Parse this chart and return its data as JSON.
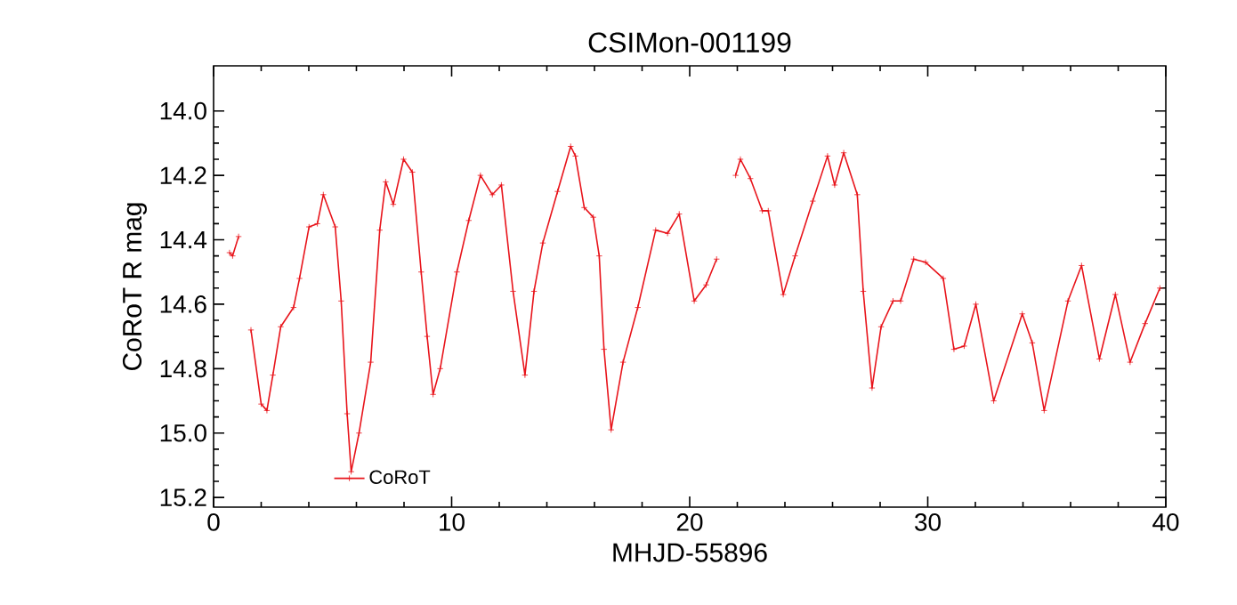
{
  "chart_data": {
    "type": "line",
    "title": "CSIMon-001199",
    "xlabel": "MHJD-55896",
    "ylabel": "CoRoT R mag",
    "x": [
      0.67,
      0.8,
      1.05,
      null,
      1.57,
      2.0,
      2.24,
      2.49,
      2.82,
      3.36,
      3.61,
      4.01,
      4.36,
      4.61,
      5.11,
      5.36,
      5.61,
      5.78,
      6.11,
      6.6,
      6.98,
      7.23,
      7.55,
      7.98,
      8.35,
      8.72,
      8.97,
      9.22,
      9.52,
      10.22,
      10.72,
      11.21,
      11.71,
      12.09,
      12.58,
      13.08,
      13.46,
      13.83,
      14.45,
      15.0,
      15.2,
      15.57,
      15.95,
      16.2,
      16.4,
      16.7,
      17.2,
      17.82,
      18.57,
      19.07,
      19.56,
      20.19,
      20.69,
      21.13,
      null,
      21.93,
      22.13,
      22.55,
      23.05,
      23.3,
      23.93,
      24.43,
      25.17,
      25.79,
      26.09,
      26.47,
      27.04,
      27.29,
      27.66,
      28.04,
      28.54,
      28.86,
      29.41,
      29.91,
      30.65,
      31.1,
      31.53,
      32.02,
      32.77,
      33.97,
      34.39,
      34.89,
      35.89,
      36.46,
      37.21,
      37.88,
      38.5,
      39.13,
      39.75
    ],
    "series": [
      {
        "name": "CoRoT",
        "color": "#e8141b",
        "values": [
          14.44,
          14.45,
          14.39,
          null,
          14.68,
          14.91,
          14.93,
          14.82,
          14.67,
          14.61,
          14.52,
          14.36,
          14.35,
          14.26,
          14.36,
          14.59,
          14.94,
          15.12,
          15.0,
          14.78,
          14.37,
          14.22,
          14.29,
          14.15,
          14.19,
          14.5,
          14.7,
          14.88,
          14.8,
          14.5,
          14.34,
          14.2,
          14.26,
          14.23,
          14.56,
          14.82,
          14.56,
          14.41,
          14.25,
          14.11,
          14.14,
          14.3,
          14.33,
          14.45,
          14.74,
          14.99,
          14.78,
          14.61,
          14.37,
          14.38,
          14.32,
          14.59,
          14.54,
          14.46,
          null,
          14.2,
          14.15,
          14.21,
          14.31,
          14.31,
          14.57,
          14.45,
          14.28,
          14.14,
          14.23,
          14.13,
          14.26,
          14.56,
          14.86,
          14.67,
          14.59,
          14.59,
          14.46,
          14.47,
          14.52,
          14.74,
          14.73,
          14.6,
          14.9,
          14.63,
          14.72,
          14.93,
          14.59,
          14.48,
          14.77,
          14.57,
          14.78,
          14.66,
          14.55
        ]
      }
    ],
    "xlim": [
      0,
      40
    ],
    "ylim": [
      15.23,
      13.86
    ],
    "xticks": [
      0,
      10,
      20,
      30,
      40
    ],
    "yticks": [
      {
        "value": 14.0,
        "label": "14.0"
      },
      {
        "value": 14.2,
        "label": "14.2"
      },
      {
        "value": 14.4,
        "label": "14.4"
      },
      {
        "value": 14.6,
        "label": "14.6"
      },
      {
        "value": 14.8,
        "label": "14.8"
      },
      {
        "value": 15.0,
        "label": "15.0"
      },
      {
        "value": 15.2,
        "label": "15.2"
      }
    ],
    "marker": "cross",
    "legend": "bottom left",
    "grid": false
  }
}
